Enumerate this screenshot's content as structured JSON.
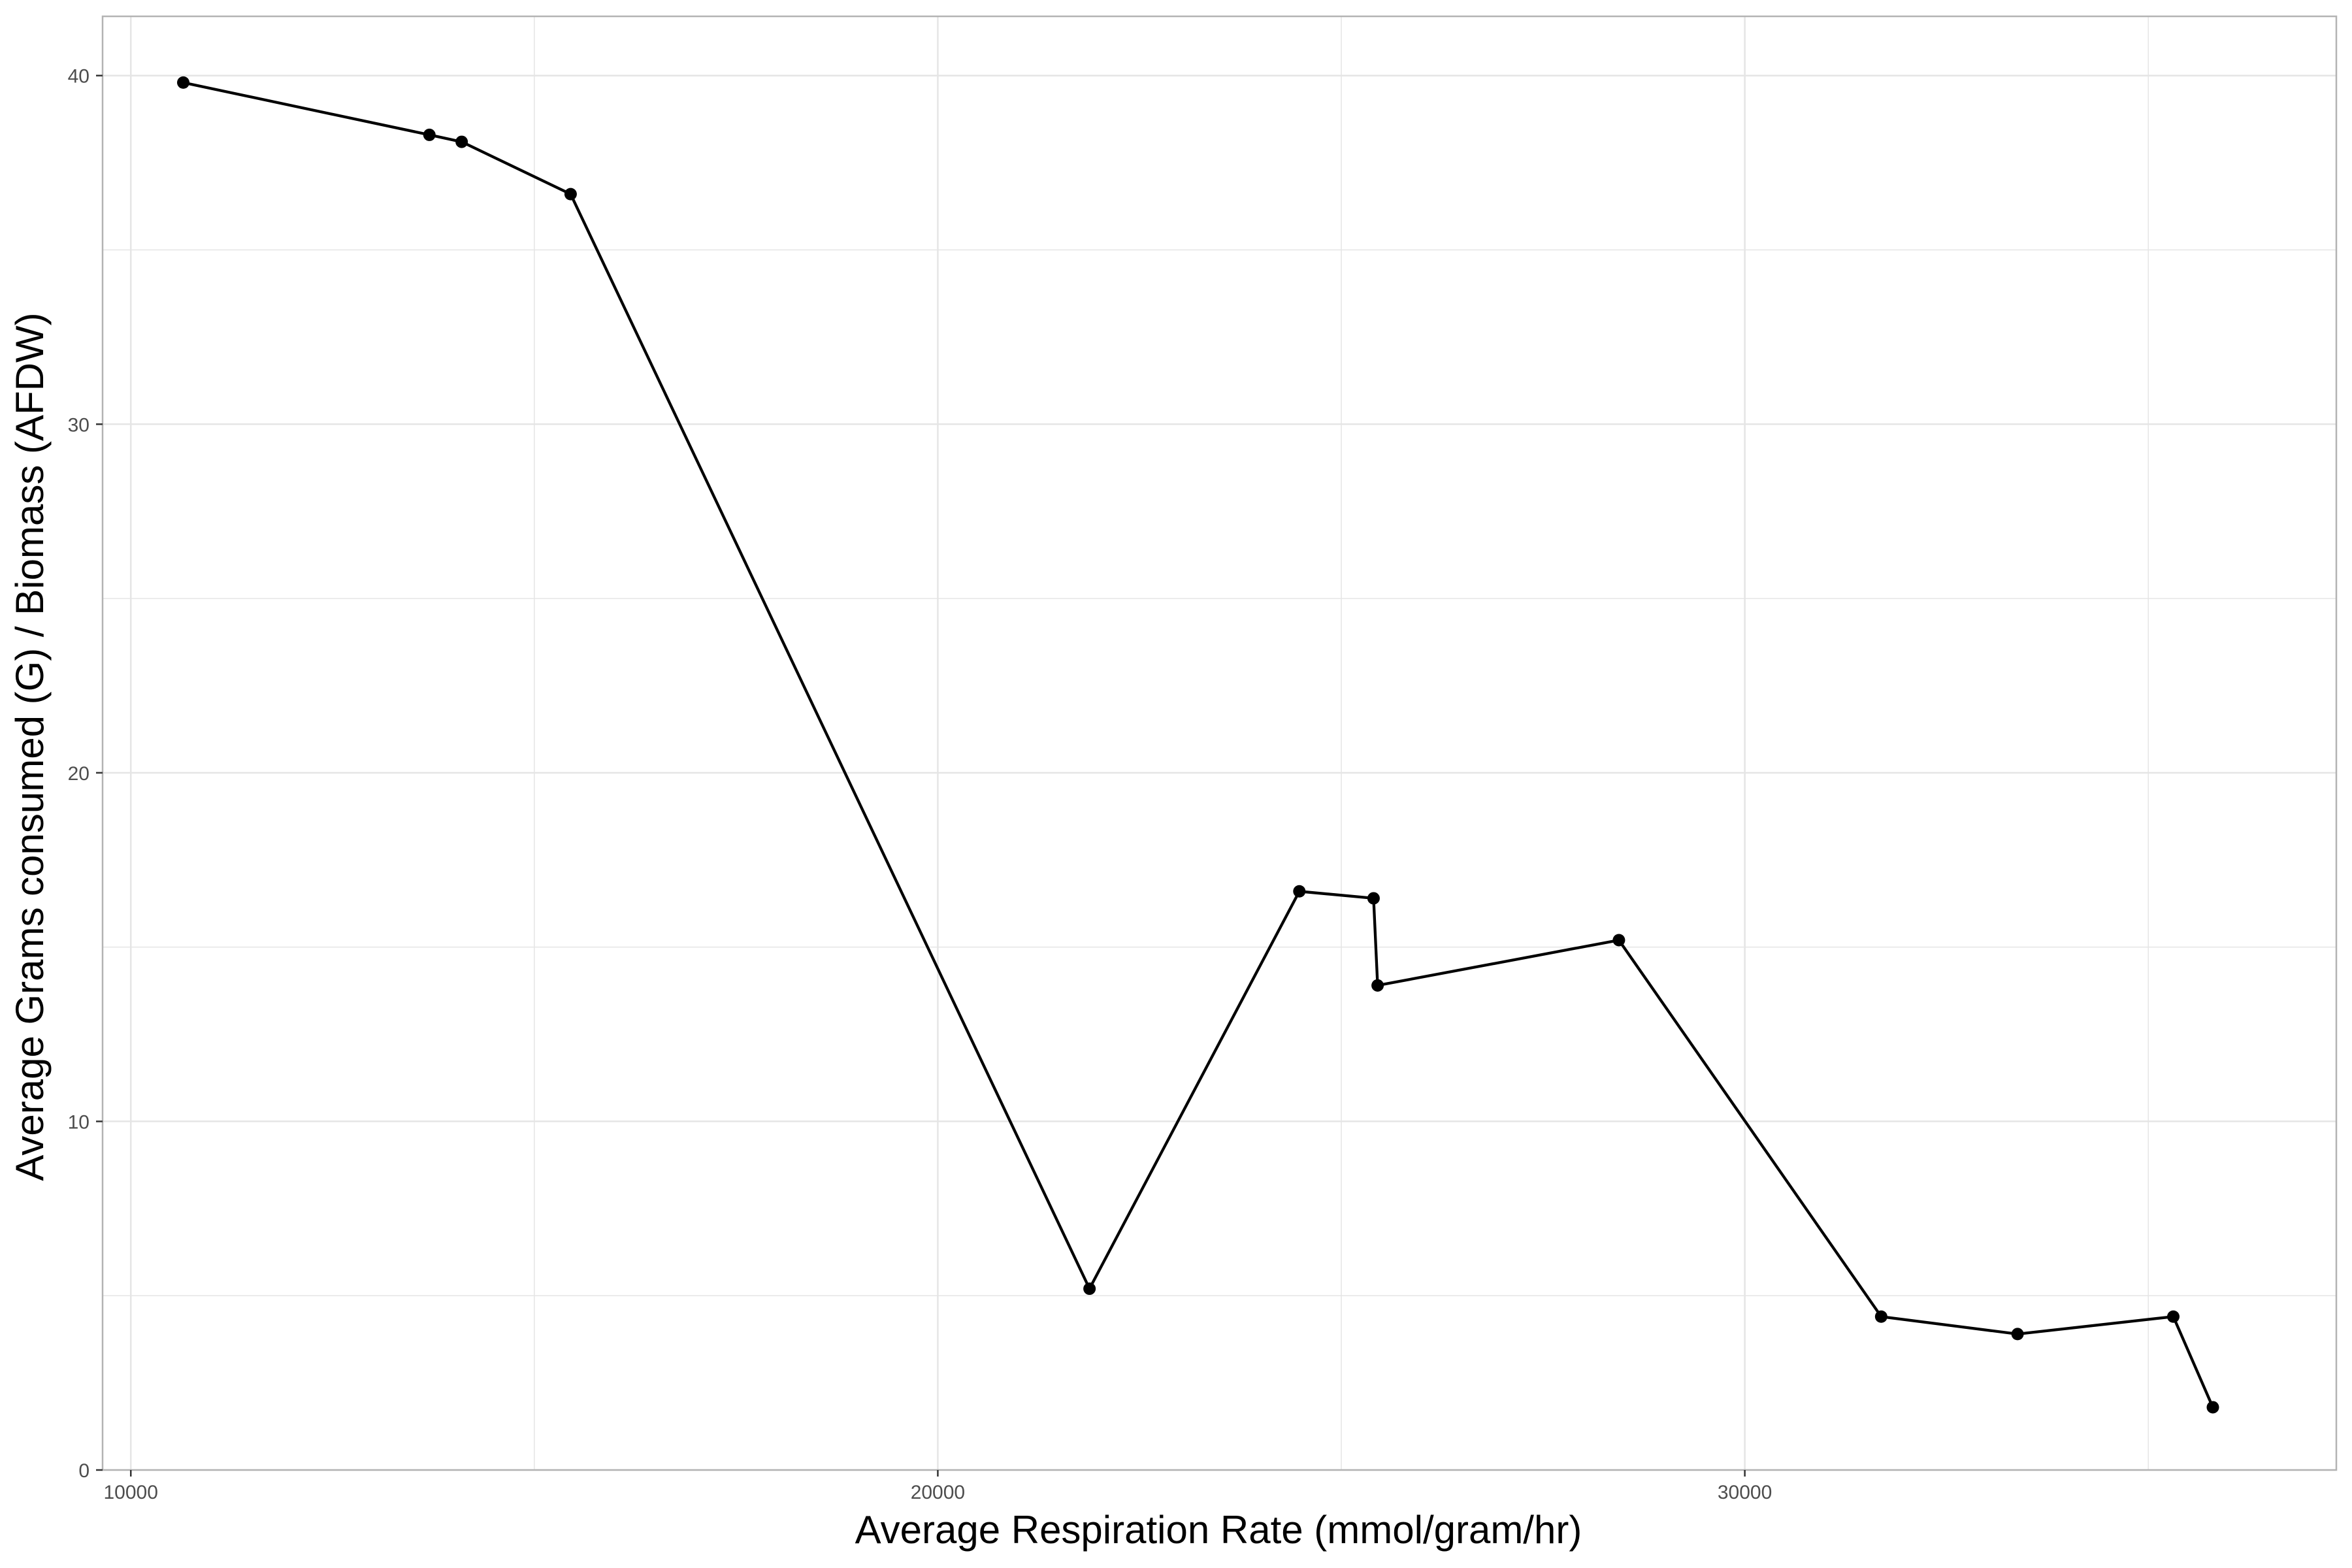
{
  "chart_data": {
    "type": "line",
    "title": "",
    "xlabel": "Average Respiration Rate (mmol/gram/hr)",
    "ylabel": "Average Grams consumed (G) / Biomass (AFDW)",
    "xlim": [
      9650,
      37330
    ],
    "ylim": [
      0,
      41.7
    ],
    "x_ticks": [
      10000,
      20000,
      30000
    ],
    "x_tick_labels": [
      "10000",
      "20000",
      "30000"
    ],
    "y_ticks": [
      0,
      10,
      20,
      30,
      40
    ],
    "y_tick_labels": [
      "0",
      "10",
      "20",
      "30",
      "40"
    ],
    "x_minor_gridlines": [
      15000,
      25000,
      35000
    ],
    "y_minor_gridlines": [
      5,
      15,
      25,
      35
    ],
    "grid": true,
    "legend": "none",
    "series": [
      {
        "x": [
          10650,
          13700,
          14100,
          15450,
          21880,
          24480,
          25400,
          25450,
          28440,
          31690,
          33380,
          35310,
          35800
        ],
        "y": [
          39.8,
          38.3,
          38.1,
          36.6,
          5.2,
          16.6,
          16.4,
          13.9,
          15.2,
          4.4,
          3.9,
          4.4,
          1.8
        ]
      }
    ],
    "colors": {
      "line": "#000000",
      "points": "#000000",
      "grid": "#e5e5e5",
      "panel_border": "#b3b3b3",
      "tick_text": "#4d4d4d"
    }
  }
}
